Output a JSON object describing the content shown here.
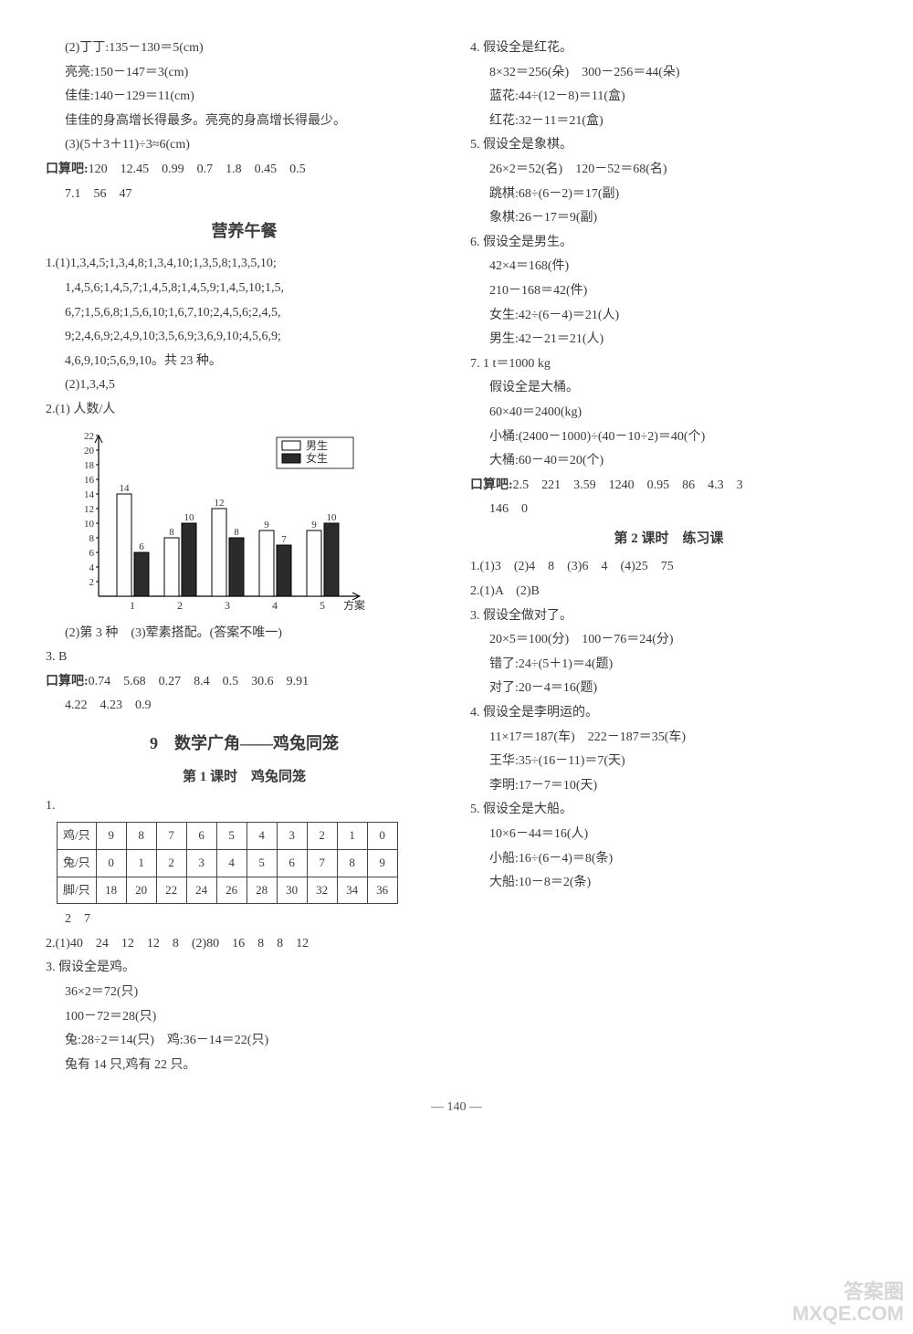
{
  "left": {
    "pre": [
      "(2)丁丁:135－130＝5(cm)",
      "亮亮:150－147＝3(cm)",
      "佳佳:140－129＝11(cm)",
      "佳佳的身高增长得最多。亮亮的身高增长得最少。",
      "(3)(5＋3＋11)÷3≈6(cm)"
    ],
    "mental1_label": "口算吧:",
    "mental1_a": "120　12.45　0.99　0.7　1.8　0.45　0.5",
    "mental1_b": "7.1　56　47",
    "sec_lunch": "营养午餐",
    "q1a": "1.(1)1,3,4,5;1,3,4,8;1,3,4,10;1,3,5,8;1,3,5,10;",
    "q1b": "1,4,5,6;1,4,5,7;1,4,5,8;1,4,5,9;1,4,5,10;1,5,",
    "q1c": "6,7;1,5,6,8;1,5,6,10;1,6,7,10;2,4,5,6;2,4,5,",
    "q1d": "9;2,4,6,9;2,4,9,10;3,5,6,9;3,6,9,10;4,5,6,9;",
    "q1e": "4,6,9,10;5,6,9,10。共 23 种。",
    "q1f": "(2)1,3,4,5",
    "q2label": "2.(1) 人数/人",
    "chart": {
      "y_ticks": [
        2,
        4,
        6,
        8,
        10,
        12,
        14,
        16,
        18,
        20,
        22
      ],
      "categories": [
        "1",
        "2",
        "3",
        "4",
        "5"
      ],
      "series": [
        {
          "name": "男生",
          "fill": "#ffffff",
          "stroke": "#000000",
          "values": [
            14,
            8,
            12,
            9,
            9
          ]
        },
        {
          "name": "女生",
          "fill": "#2b2b2b",
          "stroke": "#000000",
          "values": [
            6,
            10,
            8,
            7,
            10
          ]
        }
      ],
      "x_axis_label": "方案",
      "y_max": 22,
      "legend_m": "男生",
      "legend_f": "女生"
    },
    "q2b": "(2)第 3 种　(3)荤素搭配。(答案不唯一)",
    "q3": "3. B",
    "mental2_label": "口算吧:",
    "mental2_a": "0.74　5.68　0.27　8.4　0.5　30.6　9.91",
    "mental2_b": "4.22　4.23　0.9",
    "sec_jitu_title": "9　数学广角——鸡兔同笼",
    "sec_jitu_sub": "第 1 课时　鸡兔同笼",
    "tbl": {
      "head": [
        "鸡/只",
        "9",
        "8",
        "7",
        "6",
        "5",
        "4",
        "3",
        "2",
        "1",
        "0"
      ],
      "r2": [
        "兔/只",
        "0",
        "1",
        "2",
        "3",
        "4",
        "5",
        "6",
        "7",
        "8",
        "9"
      ],
      "r3": [
        "脚/只",
        "18",
        "20",
        "22",
        "24",
        "26",
        "28",
        "30",
        "32",
        "34",
        "36"
      ]
    },
    "tbl_after": "2　7",
    "l2": "2.(1)40　24　12　12　8　(2)80　16　8　8　12",
    "l3a": "3. 假设全是鸡。",
    "l3b": "36×2＝72(只)",
    "l3c": "100－72＝28(只)",
    "l3d": "兔:28÷2＝14(只)　鸡:36－14＝22(只)",
    "l3e": "兔有 14 只,鸡有 22 只。"
  },
  "right": {
    "r4a": "4. 假设全是红花。",
    "r4b": "8×32＝256(朵)　300－256＝44(朵)",
    "r4c": "蓝花:44÷(12－8)＝11(盒)",
    "r4d": "红花:32－11＝21(盒)",
    "r5a": "5. 假设全是象棋。",
    "r5b": "26×2＝52(名)　120－52＝68(名)",
    "r5c": "跳棋:68÷(6－2)＝17(副)",
    "r5d": "象棋:26－17＝9(副)",
    "r6a": "6. 假设全是男生。",
    "r6b": "42×4＝168(件)",
    "r6c": "210－168＝42(件)",
    "r6d": "女生:42÷(6－4)＝21(人)",
    "r6e": "男生:42－21＝21(人)",
    "r7a": "7. 1 t＝1000 kg",
    "r7b": "假设全是大桶。",
    "r7c": "60×40＝2400(kg)",
    "r7d": "小桶:(2400－1000)÷(40－10÷2)＝40(个)",
    "r7e": "大桶:60－40＝20(个)",
    "mental3_label": "口算吧:",
    "mental3_a": "2.5　221　3.59　1240　0.95　86　4.3　3",
    "mental3_b": "146　0",
    "sec2": "第 2 课时　练习课",
    "p1": "1.(1)3　(2)4　8　(3)6　4　(4)25　75",
    "p2": "2.(1)A　(2)B",
    "p3a": "3. 假设全做对了。",
    "p3b": "20×5＝100(分)　100－76＝24(分)",
    "p3c": "错了:24÷(5＋1)＝4(题)",
    "p3d": "对了:20－4＝16(题)",
    "p4a": "4. 假设全是李明运的。",
    "p4b": "11×17＝187(车)　222－187＝35(车)",
    "p4c": "王华:35÷(16－11)＝7(天)",
    "p4d": "李明:17－7＝10(天)",
    "p5a": "5. 假设全是大船。",
    "p5b": "10×6－44＝16(人)",
    "p5c": "小船:16÷(6－4)＝8(条)",
    "p5d": "大船:10－8＝2(条)"
  },
  "page_num": "— 140 —",
  "watermark1": "答案圈",
  "watermark2": "MXQE.COM"
}
